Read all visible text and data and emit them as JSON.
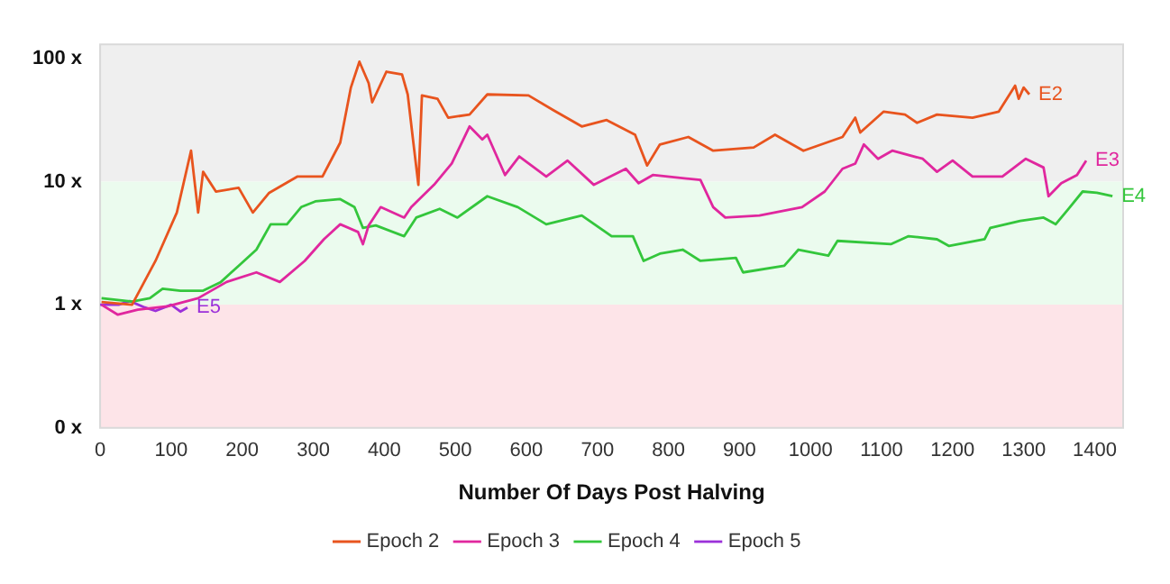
{
  "chart_data": {
    "type": "line",
    "xlabel": "Number Of Days Post Halving",
    "log": "y",
    "legend": "bottom",
    "xlim": [
      0,
      1440
    ],
    "xticks": [
      0,
      100,
      200,
      300,
      400,
      500,
      600,
      700,
      800,
      900,
      1000,
      1100,
      1200,
      1300,
      1400
    ],
    "ylim": [
      0.1,
      130
    ],
    "yticks": [
      {
        "value": 0.1,
        "label": "0 x"
      },
      {
        "value": 1,
        "label": "1 x"
      },
      {
        "value": 10,
        "label": "10 x"
      },
      {
        "value": 100,
        "label": "100 x"
      }
    ],
    "bands": [
      {
        "axis": "y",
        "from": 10,
        "to": 130,
        "color": "#efefef"
      },
      {
        "axis": "y",
        "from": 1,
        "to": 10,
        "color": "#ebfbee"
      },
      {
        "axis": "y",
        "from": 0.1,
        "to": 1,
        "color": "#fde4e8"
      }
    ],
    "series": [
      {
        "name": "Epoch 2",
        "color": "#e8541e",
        "x": [
          2,
          45,
          78,
          108,
          128,
          138,
          145,
          163,
          195,
          215,
          238,
          278,
          313,
          338,
          353,
          365,
          378,
          383,
          403,
          425,
          433,
          440,
          448,
          453,
          475,
          490,
          520,
          545,
          603,
          638,
          678,
          713,
          753,
          770,
          788,
          828,
          863,
          920,
          950,
          990,
          1045,
          1063,
          1070,
          1103,
          1133,
          1150,
          1178,
          1228,
          1265,
          1288,
          1293,
          1300,
          1308
        ],
        "values": [
          1.05,
          1.0,
          2.27,
          5.6,
          17.8,
          5.6,
          12,
          8.3,
          8.9,
          5.6,
          8.1,
          11,
          11,
          20.7,
          58,
          94,
          63,
          44,
          78,
          74,
          51,
          23,
          9.4,
          50,
          47,
          33,
          35,
          51,
          50,
          38,
          28,
          31.6,
          24,
          13.5,
          20,
          23,
          17.8,
          18.9,
          24,
          17.8,
          23,
          33,
          25,
          37,
          35,
          30,
          35,
          33,
          37,
          60,
          47,
          58,
          51
        ]
      },
      {
        "name": "Epoch 3",
        "color": "#e0279e",
        "x": [
          2,
          25,
          53,
          95,
          138,
          178,
          220,
          253,
          288,
          315,
          338,
          363,
          370,
          378,
          395,
          428,
          438,
          470,
          495,
          520,
          538,
          545,
          570,
          590,
          628,
          658,
          695,
          740,
          758,
          778,
          845,
          863,
          880,
          928,
          988,
          1020,
          1045,
          1063,
          1075,
          1095,
          1115,
          1158,
          1178,
          1200,
          1228,
          1270,
          1303,
          1328,
          1335,
          1353,
          1375,
          1388
        ],
        "values": [
          1.0,
          0.83,
          0.91,
          0.97,
          1.13,
          1.53,
          1.83,
          1.53,
          2.27,
          3.4,
          4.5,
          3.9,
          3.1,
          4.4,
          6.2,
          5.1,
          6.2,
          9.4,
          14,
          28,
          22,
          24,
          11.3,
          16,
          11,
          14.8,
          9.4,
          12.7,
          9.7,
          11.3,
          10.3,
          6.2,
          5.1,
          5.3,
          6.2,
          8.3,
          12.7,
          14,
          20,
          15.3,
          17.8,
          15.3,
          12,
          14.8,
          11,
          11,
          15.3,
          13,
          7.6,
          9.7,
          11.3,
          14.8
        ]
      },
      {
        "name": "Epoch 4",
        "color": "#34c63c",
        "x": [
          2,
          45,
          70,
          88,
          113,
          145,
          170,
          195,
          220,
          240,
          263,
          283,
          303,
          338,
          358,
          370,
          388,
          428,
          445,
          478,
          503,
          545,
          588,
          628,
          678,
          720,
          750,
          765,
          788,
          820,
          845,
          895,
          905,
          963,
          983,
          1025,
          1038,
          1113,
          1138,
          1178,
          1195,
          1245,
          1253,
          1295,
          1328,
          1345,
          1363,
          1383,
          1403,
          1425
        ],
        "values": [
          1.13,
          1.06,
          1.13,
          1.35,
          1.3,
          1.3,
          1.53,
          2.07,
          2.8,
          4.5,
          4.5,
          6.2,
          6.9,
          7.2,
          6.2,
          4.2,
          4.4,
          3.6,
          5.1,
          6.0,
          5.1,
          7.6,
          6.2,
          4.5,
          5.3,
          3.6,
          3.6,
          2.27,
          2.6,
          2.8,
          2.27,
          2.4,
          1.83,
          2.07,
          2.8,
          2.5,
          3.3,
          3.1,
          3.6,
          3.4,
          3.0,
          3.4,
          4.2,
          4.8,
          5.1,
          4.5,
          6.0,
          8.3,
          8.1,
          7.6
        ]
      },
      {
        "name": "Epoch 5",
        "color": "#9b30d9",
        "x": [
          0,
          26,
          42,
          63,
          78,
          100,
          113,
          123
        ],
        "values": [
          1.0,
          1.0,
          1.07,
          0.95,
          0.89,
          1.0,
          0.88,
          0.95
        ]
      }
    ],
    "annotations": [
      {
        "text": "E2",
        "x": 1308,
        "y": 51
      },
      {
        "text": "E3",
        "x": 1388,
        "y": 14.8
      },
      {
        "text": "E4",
        "x": 1425,
        "y": 7.6
      },
      {
        "text": "E5",
        "x": 123,
        "y": 0.95
      }
    ]
  }
}
